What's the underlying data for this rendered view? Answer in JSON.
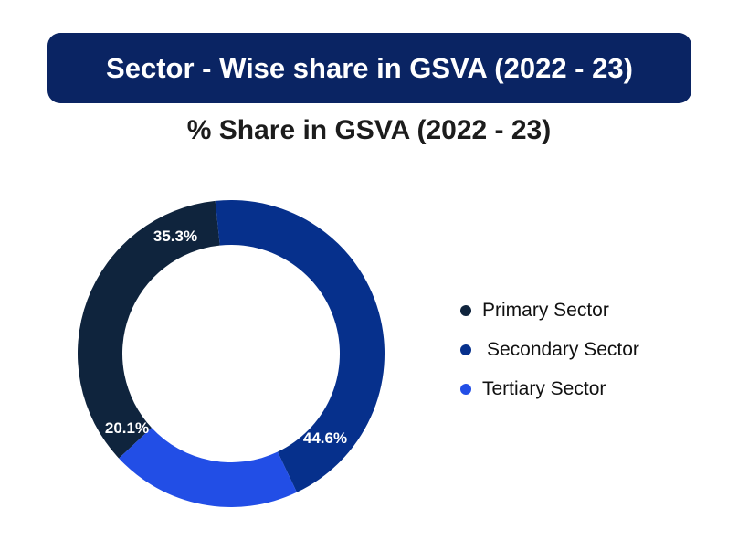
{
  "banner": {
    "title": "Sector - Wise share in GSVA (2022 - 23)"
  },
  "colors": {
    "banner_bg": "#0a2463"
  },
  "chart_data": {
    "type": "pie",
    "style": "donut",
    "title": "% Share in GSVA (2022 - 23)",
    "legend_position": "right",
    "series": [
      {
        "name": "Primary Sector",
        "value": 35.3,
        "label": "35.3%",
        "color": "#0f243d"
      },
      {
        "name": "Secondary Sector",
        "value": 44.6,
        "label": "44.6%",
        "color": "#06308c"
      },
      {
        "name": "Tertiary Sector",
        "value": 20.1,
        "label": "20.1%",
        "color": "#224ee6"
      }
    ]
  }
}
